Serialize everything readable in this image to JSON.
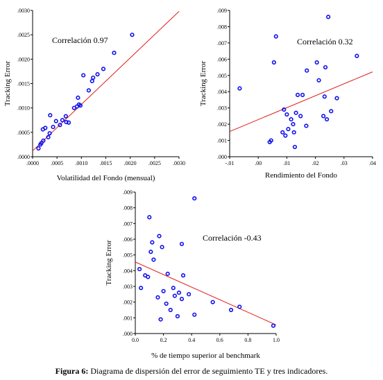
{
  "caption": {
    "bold": "Figura 6:",
    "text": " Diagrama de dispersión del error de seguimiento  TE y tres indicadores."
  },
  "colors": {
    "points": "#1010ee",
    "fit_line": "#e01818",
    "axes": "#000000"
  },
  "chart_data": [
    {
      "type": "scatter",
      "xlabel": "Volatilidad del Fondo (mensual)",
      "ylabel": "Tracking Error",
      "annotation": "Correlación 0.97",
      "xlim": [
        0,
        0.003
      ],
      "ylim": [
        0,
        0.003
      ],
      "xticks": [
        ".0000",
        ".0005",
        ".0010",
        ".0015",
        ".0020",
        ".0025",
        ".0030"
      ],
      "yticks": [
        ".0000",
        ".0005",
        ".0010",
        ".0015",
        ".0020",
        ".0025",
        ".0030"
      ],
      "fit_line": [
        [
          0,
          0.00012
        ],
        [
          0.003,
          0.00298
        ]
      ],
      "points": [
        [
          0.00012,
          0.00017
        ],
        [
          0.00016,
          0.00025
        ],
        [
          0.00018,
          0.00028
        ],
        [
          0.00022,
          0.00033
        ],
        [
          0.00021,
          0.00056
        ],
        [
          0.00026,
          0.00059
        ],
        [
          0.00032,
          0.0004
        ],
        [
          0.00035,
          0.00048
        ],
        [
          0.00036,
          0.00085
        ],
        [
          0.00042,
          0.00061
        ],
        [
          0.00048,
          0.00073
        ],
        [
          0.00056,
          0.00065
        ],
        [
          0.00061,
          0.00075
        ],
        [
          0.00068,
          0.00083
        ],
        [
          0.00069,
          0.00071
        ],
        [
          0.00074,
          0.0007
        ],
        [
          0.00085,
          0.001
        ],
        [
          0.00091,
          0.00103
        ],
        [
          0.00093,
          0.00121
        ],
        [
          0.00095,
          0.00107
        ],
        [
          0.00098,
          0.00105
        ],
        [
          0.00104,
          0.00167
        ],
        [
          0.00115,
          0.00136
        ],
        [
          0.00122,
          0.00155
        ],
        [
          0.00124,
          0.00162
        ],
        [
          0.00133,
          0.00169
        ],
        [
          0.00145,
          0.0018
        ],
        [
          0.00167,
          0.00213
        ],
        [
          0.00204,
          0.0025
        ]
      ]
    },
    {
      "type": "scatter",
      "xlabel": "Rendimiento del Fondo",
      "ylabel": "Tracking Error",
      "annotation": "Correlación 0.32",
      "xlim": [
        -0.01,
        0.04
      ],
      "ylim": [
        0,
        0.009
      ],
      "xticks": [
        "-.01",
        ".00",
        ".01",
        ".02",
        ".03",
        ".04"
      ],
      "yticks": [
        ".000",
        ".001",
        ".002",
        ".003",
        ".004",
        ".005",
        ".006",
        ".007",
        ".008",
        ".009"
      ],
      "fit_line": [
        [
          -0.01,
          0.00155
        ],
        [
          0.04,
          0.00522
        ]
      ],
      "points": [
        [
          -0.0065,
          0.0042
        ],
        [
          0.004,
          0.0009
        ],
        [
          0.0045,
          0.001
        ],
        [
          0.0055,
          0.0058
        ],
        [
          0.0062,
          0.0074
        ],
        [
          0.0085,
          0.0015
        ],
        [
          0.009,
          0.0029
        ],
        [
          0.0095,
          0.0013
        ],
        [
          0.01,
          0.0026
        ],
        [
          0.0105,
          0.0017
        ],
        [
          0.0115,
          0.0023
        ],
        [
          0.0122,
          0.002
        ],
        [
          0.0125,
          0.0015
        ],
        [
          0.0128,
          0.0006
        ],
        [
          0.0132,
          0.0027
        ],
        [
          0.0138,
          0.0038
        ],
        [
          0.0148,
          0.0025
        ],
        [
          0.0155,
          0.0038
        ],
        [
          0.0168,
          0.0019
        ],
        [
          0.017,
          0.0053
        ],
        [
          0.0205,
          0.0058
        ],
        [
          0.0212,
          0.0047
        ],
        [
          0.0228,
          0.0025
        ],
        [
          0.0232,
          0.0037
        ],
        [
          0.0235,
          0.0055
        ],
        [
          0.024,
          0.0023
        ],
        [
          0.0245,
          0.0086
        ],
        [
          0.0255,
          0.0028
        ],
        [
          0.0275,
          0.0036
        ],
        [
          0.0345,
          0.0062
        ]
      ]
    },
    {
      "type": "scatter",
      "xlabel": "% de tiempo superior al benchmark",
      "ylabel": "Tracking Error",
      "annotation": "Correlación -0.43",
      "xlim": [
        0,
        1
      ],
      "ylim": [
        0,
        0.009
      ],
      "xticks": [
        "0.0",
        "0.2",
        "0.4",
        "0.6",
        "0.8",
        "1.0"
      ],
      "yticks": [
        ".000",
        ".001",
        ".002",
        ".003",
        ".004",
        ".005",
        ".006",
        ".007",
        ".008",
        ".009"
      ],
      "fit_line": [
        [
          0,
          0.00455
        ],
        [
          1,
          0.00055
        ]
      ],
      "points": [
        [
          0.03,
          0.0041
        ],
        [
          0.04,
          0.0029
        ],
        [
          0.07,
          0.0037
        ],
        [
          0.09,
          0.0036
        ],
        [
          0.1,
          0.0074
        ],
        [
          0.11,
          0.0052
        ],
        [
          0.12,
          0.0058
        ],
        [
          0.13,
          0.0047
        ],
        [
          0.16,
          0.0023
        ],
        [
          0.17,
          0.0062
        ],
        [
          0.18,
          0.0009
        ],
        [
          0.19,
          0.0055
        ],
        [
          0.2,
          0.0027
        ],
        [
          0.22,
          0.0019
        ],
        [
          0.23,
          0.0038
        ],
        [
          0.25,
          0.0015
        ],
        [
          0.27,
          0.0029
        ],
        [
          0.28,
          0.0024
        ],
        [
          0.3,
          0.0011
        ],
        [
          0.31,
          0.0026
        ],
        [
          0.33,
          0.0057
        ],
        [
          0.33,
          0.0022
        ],
        [
          0.34,
          0.0037
        ],
        [
          0.38,
          0.0025
        ],
        [
          0.42,
          0.0012
        ],
        [
          0.42,
          0.0086
        ],
        [
          0.55,
          0.002
        ],
        [
          0.68,
          0.0015
        ],
        [
          0.74,
          0.0017
        ],
        [
          0.98,
          0.0005
        ]
      ]
    }
  ]
}
